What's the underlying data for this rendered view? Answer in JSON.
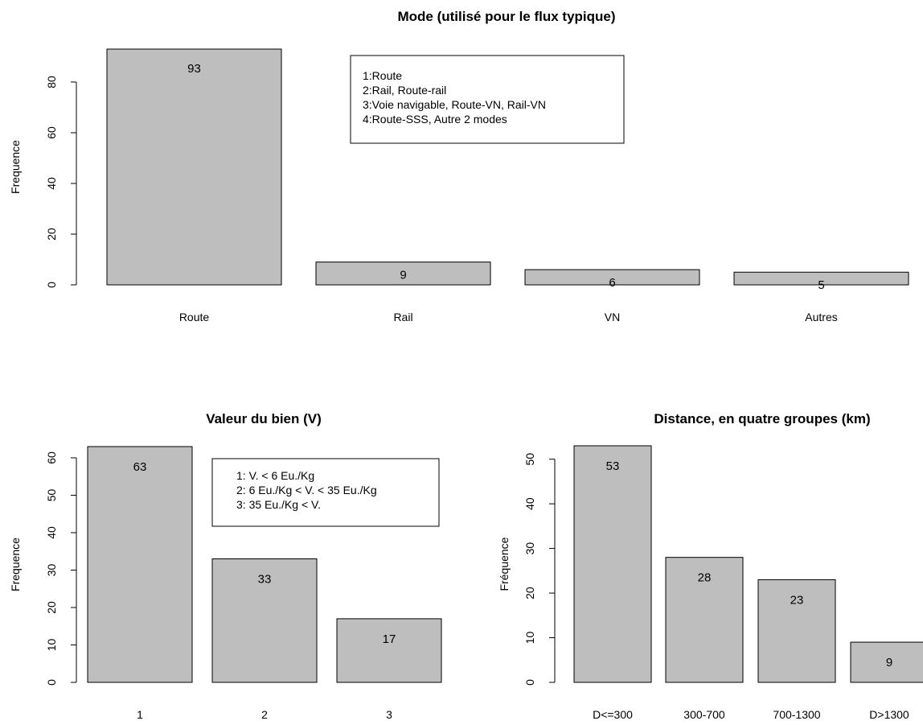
{
  "chart_data": [
    {
      "type": "bar",
      "title": "Mode (utilisé pour le flux typique)",
      "xlabel": "",
      "ylabel": "Frequence",
      "categories": [
        "Route",
        "Rail",
        "VN",
        "Autres"
      ],
      "values": [
        93,
        9,
        6,
        5
      ],
      "data_labels": [
        "93",
        "9",
        "6",
        "5"
      ],
      "ylim": [
        0,
        93
      ],
      "yticks": [
        0,
        20,
        40,
        60,
        80
      ],
      "ytick_labels": [
        "0",
        "20",
        "40",
        "60",
        "80"
      ],
      "grid": false,
      "legend_placement": "top-center",
      "legend": [
        "1:Route",
        "2:Rail, Route-rail",
        "3:Voie navigable, Route-VN, Rail-VN",
        "4:Route-SSS, Autre 2 modes"
      ]
    },
    {
      "type": "bar",
      "title": "Valeur du bien (V)",
      "xlabel": "",
      "ylabel": "Frequence",
      "categories": [
        "1",
        "2",
        "3"
      ],
      "values": [
        63,
        33,
        17
      ],
      "data_labels": [
        "63",
        "33",
        "17"
      ],
      "ylim": [
        0,
        63
      ],
      "yticks": [
        0,
        10,
        20,
        30,
        40,
        50,
        60
      ],
      "ytick_labels": [
        "0",
        "10",
        "20",
        "30",
        "40",
        "50",
        "60"
      ],
      "grid": false,
      "legend_placement": "top-right",
      "legend": [
        "1: V. < 6 Eu./Kg",
        "2: 6 Eu./Kg < V. < 35 Eu./Kg",
        "3: 35 Eu./Kg < V."
      ]
    },
    {
      "type": "bar",
      "title": "Distance, en quatre groupes (km)",
      "xlabel": "",
      "ylabel": "Fréquence",
      "categories": [
        "D<=300",
        "300-700",
        "700-1300",
        "D>1300"
      ],
      "values": [
        53,
        28,
        23,
        9
      ],
      "data_labels": [
        "53",
        "28",
        "23",
        "9"
      ],
      "ylim": [
        0,
        53
      ],
      "yticks": [
        0,
        10,
        20,
        30,
        40,
        50
      ],
      "ytick_labels": [
        "0",
        "10",
        "20",
        "30",
        "40",
        "50"
      ],
      "grid": false,
      "legend_placement": "none",
      "legend": []
    }
  ]
}
